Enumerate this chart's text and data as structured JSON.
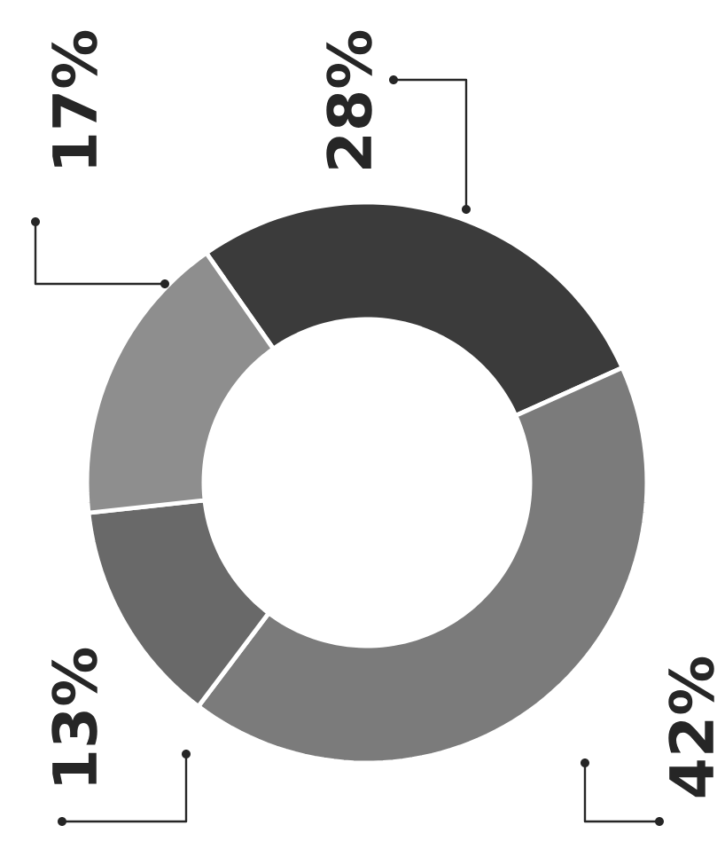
{
  "chart_data": {
    "type": "donut",
    "categories": [
      null,
      null,
      null,
      null
    ],
    "values": [
      28,
      42,
      13,
      17
    ],
    "colors": [
      "#3b3b3b",
      "#7b7b7b",
      "#696969",
      "#8e8e8e"
    ],
    "value_labels": [
      "28%",
      "42%",
      "13%",
      "17%"
    ]
  }
}
